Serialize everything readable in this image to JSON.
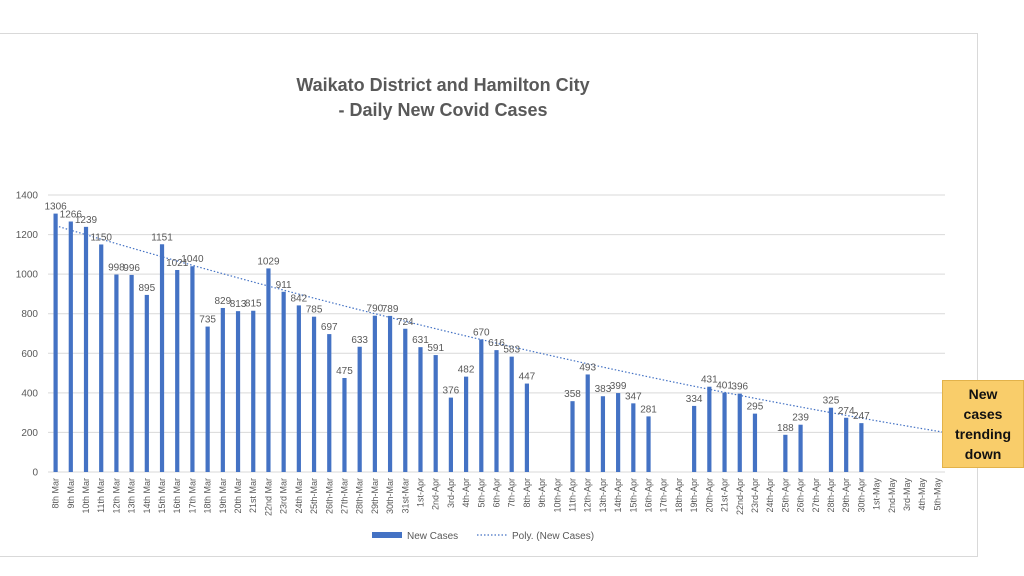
{
  "chart_data": {
    "type": "bar",
    "title": "Waikato District and Hamilton City",
    "subtitle": "- Daily New Covid Cases",
    "xlabel": "",
    "ylabel": "",
    "ylim": [
      0,
      1400
    ],
    "yticks": [
      0,
      200,
      400,
      600,
      800,
      1000,
      1200,
      1400
    ],
    "grid": true,
    "legend_position": "bottom",
    "colors": {
      "bar": "#4472c4",
      "trend": "#4472c4",
      "grid": "#d9d9d9",
      "text": "#595959"
    },
    "categories": [
      "8th Mar",
      "9th Mar",
      "10th Mar",
      "11th Mar",
      "12th Mar",
      "13th Mar",
      "14th Mar",
      "15th Mar",
      "16th Mar",
      "17th Mar",
      "18th Mar",
      "19th Mar",
      "20th Mar",
      "21st Mar",
      "22nd Mar",
      "23rd Mar",
      "24th Mar",
      "25th-Mar",
      "26th-Mar",
      "27th-Mar",
      "28th-Mar",
      "29th-Mar",
      "30th-Mar",
      "31st-Mar",
      "1st-Apr",
      "2nd-Apr",
      "3rd-Apr",
      "4th-Apr",
      "5th-Apr",
      "6th-Apr",
      "7th-Apr",
      "8th-Apr",
      "9th-Apr",
      "10th-Apr",
      "11th-Apr",
      "12th-Apr",
      "13th-Apr",
      "14th-Apr",
      "15th-Apr",
      "16th-Apr",
      "17th-Apr",
      "18th-Apr",
      "19th-Apr",
      "20th-Apr",
      "21st-Apr",
      "22nd-Apr",
      "23rd-Apr",
      "24th-Apr",
      "25th-Apr",
      "26th-Apr",
      "27th-Apr",
      "28th-Apr",
      "29th-Apr",
      "30th-Apr",
      "1st-May",
      "2nd-May",
      "3rd-May",
      "4th-May",
      "5th-May"
    ],
    "series": [
      {
        "name": "New Cases",
        "type": "bar",
        "values": [
          1306,
          1266,
          1239,
          1150,
          998,
          996,
          895,
          1151,
          1021,
          1040,
          735,
          829,
          813,
          815,
          1029,
          911,
          842,
          785,
          697,
          475,
          633,
          790,
          789,
          724,
          631,
          591,
          376,
          482,
          670,
          616,
          583,
          447,
          null,
          null,
          358,
          493,
          383,
          399,
          347,
          281,
          null,
          null,
          334,
          431,
          401,
          396,
          295,
          null,
          188,
          239,
          null,
          325,
          274,
          247,
          null,
          null,
          null,
          null,
          null
        ]
      },
      {
        "name": "Poly. (New Cases)",
        "type": "trendline",
        "start": 1245,
        "end": 200
      }
    ]
  },
  "callout": {
    "text": "New\ncases\ntrending\ndown"
  }
}
